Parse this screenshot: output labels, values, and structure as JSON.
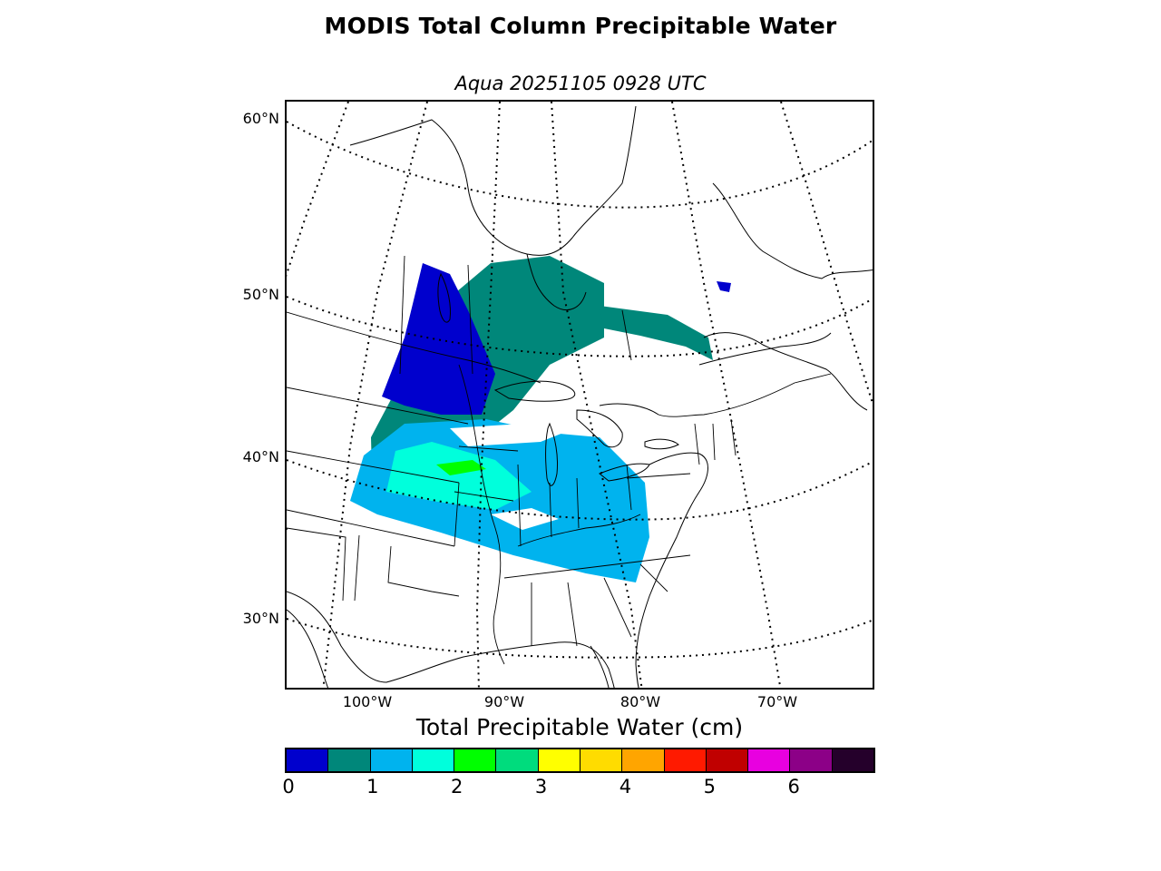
{
  "title": "MODIS Total Column Precipitable Water",
  "subtitle": "Aqua 20251105 0928 UTC",
  "map": {
    "projection": "lambert-conformal",
    "region": "central and eastern North America",
    "lat_labels": [
      "60°N",
      "50°N",
      "40°N",
      "30°N"
    ],
    "lon_labels": [
      "100°W",
      "90°W",
      "80°W",
      "70°W"
    ],
    "graticule_style": "dotted",
    "colorbar": {
      "title": "Total Precipitable Water (cm)",
      "range": [
        0,
        7
      ],
      "step": 0.5,
      "tick_labels": [
        "0",
        "1",
        "2",
        "3",
        "4",
        "5",
        "6"
      ],
      "colors": [
        "#0000cd",
        "#00877a",
        "#00b3ee",
        "#00ffdc",
        "#00ff00",
        "#00dc7d",
        "#ffff00",
        "#ffdc00",
        "#ffa500",
        "#ff1a00",
        "#c00000",
        "#e800e0",
        "#8c0087",
        "#25002b"
      ]
    }
  }
}
